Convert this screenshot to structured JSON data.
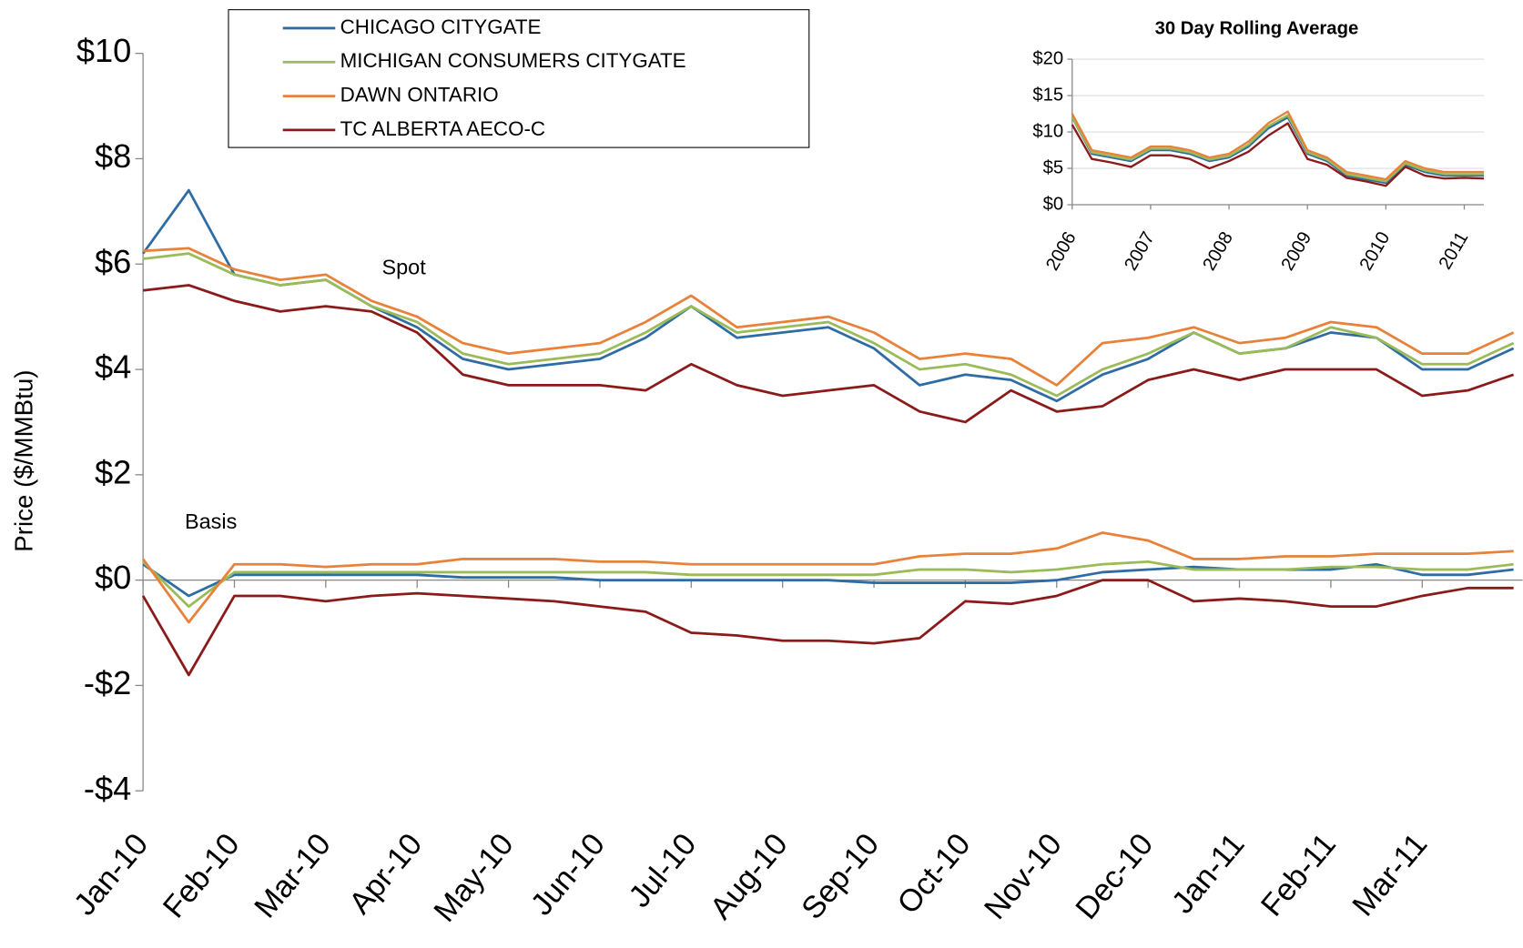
{
  "chart_data": [
    {
      "type": "line",
      "y_label": "Price ($/MMBtu)",
      "annotations": [
        "Spot",
        "Basis"
      ],
      "x": [
        0,
        0.5,
        1,
        1.5,
        2,
        2.5,
        3,
        3.5,
        4,
        4.5,
        5,
        5.5,
        6,
        6.5,
        7,
        7.5,
        8,
        8.5,
        9,
        9.5,
        10,
        10.5,
        11,
        11.5,
        12,
        12.5,
        13,
        13.5,
        14,
        14.5,
        15
      ],
      "xlim": [
        0,
        15.1
      ],
      "xticks": [
        {
          "value": 0,
          "label": "Jan-10"
        },
        {
          "value": 1,
          "label": "Feb-10"
        },
        {
          "value": 2,
          "label": "Mar-10"
        },
        {
          "value": 3,
          "label": "Apr-10"
        },
        {
          "value": 4,
          "label": "May-10"
        },
        {
          "value": 5,
          "label": "Jun-10"
        },
        {
          "value": 6,
          "label": "Jul-10"
        },
        {
          "value": 7,
          "label": "Aug-10"
        },
        {
          "value": 8,
          "label": "Sep-10"
        },
        {
          "value": 9,
          "label": "Oct-10"
        },
        {
          "value": 10,
          "label": "Nov-10"
        },
        {
          "value": 11,
          "label": "Dec-10"
        },
        {
          "value": 12,
          "label": "Jan-11"
        },
        {
          "value": 13,
          "label": "Feb-11"
        },
        {
          "value": 14,
          "label": "Mar-11"
        }
      ],
      "ylim": [
        -4,
        10
      ],
      "yticks": [
        {
          "value": -4,
          "label": "-$4"
        },
        {
          "value": -2,
          "label": "-$2"
        },
        {
          "value": 0,
          "label": "$0"
        },
        {
          "value": 2,
          "label": "$2"
        },
        {
          "value": 4,
          "label": "$4"
        },
        {
          "value": 6,
          "label": "$6"
        },
        {
          "value": 8,
          "label": "$8"
        },
        {
          "value": 10,
          "label": "$10"
        }
      ],
      "grid": false,
      "legend": "top-left",
      "series": [
        {
          "name": "CHICAGO CITYGATE",
          "color": "#2e6ca4",
          "values": [
            6.2,
            7.4,
            5.8,
            5.6,
            5.7,
            5.2,
            4.8,
            4.2,
            4.0,
            4.1,
            4.2,
            4.6,
            5.2,
            4.6,
            4.7,
            4.8,
            4.4,
            3.7,
            3.9,
            3.8,
            3.4,
            3.9,
            4.2,
            4.7,
            4.3,
            4.4,
            4.7,
            4.6,
            4.0,
            4.0,
            4.4
          ],
          "basis": [
            0.3,
            -0.3,
            0.1,
            0.1,
            0.1,
            0.1,
            0.1,
            0.05,
            0.05,
            0.05,
            0.0,
            0.0,
            0.0,
            0.0,
            0.0,
            0.0,
            -0.05,
            -0.05,
            -0.05,
            -0.05,
            0.0,
            0.15,
            0.2,
            0.25,
            0.2,
            0.2,
            0.2,
            0.3,
            0.1,
            0.1,
            0.2
          ]
        },
        {
          "name": "MICHIGAN CONSUMERS CITYGATE",
          "color": "#9bbb59",
          "values": [
            6.1,
            6.2,
            5.8,
            5.6,
            5.7,
            5.2,
            4.9,
            4.3,
            4.1,
            4.2,
            4.3,
            4.7,
            5.2,
            4.7,
            4.8,
            4.9,
            4.5,
            4.0,
            4.1,
            3.9,
            3.5,
            4.0,
            4.3,
            4.7,
            4.3,
            4.4,
            4.8,
            4.6,
            4.1,
            4.1,
            4.5
          ],
          "basis": [
            0.35,
            -0.5,
            0.15,
            0.15,
            0.15,
            0.15,
            0.15,
            0.15,
            0.15,
            0.15,
            0.15,
            0.15,
            0.1,
            0.1,
            0.1,
            0.1,
            0.1,
            0.2,
            0.2,
            0.15,
            0.2,
            0.3,
            0.35,
            0.2,
            0.2,
            0.2,
            0.25,
            0.25,
            0.2,
            0.2,
            0.3
          ]
        },
        {
          "name": "DAWN ONTARIO",
          "color": "#e8823a",
          "values": [
            6.25,
            6.3,
            5.9,
            5.7,
            5.8,
            5.3,
            5.0,
            4.5,
            4.3,
            4.4,
            4.5,
            4.9,
            5.4,
            4.8,
            4.9,
            5.0,
            4.7,
            4.2,
            4.3,
            4.2,
            3.7,
            4.5,
            4.6,
            4.8,
            4.5,
            4.6,
            4.9,
            4.8,
            4.3,
            4.3,
            4.7
          ],
          "basis": [
            0.4,
            -0.8,
            0.3,
            0.3,
            0.25,
            0.3,
            0.3,
            0.4,
            0.4,
            0.4,
            0.35,
            0.35,
            0.3,
            0.3,
            0.3,
            0.3,
            0.3,
            0.45,
            0.5,
            0.5,
            0.6,
            0.9,
            0.75,
            0.4,
            0.4,
            0.45,
            0.45,
            0.5,
            0.5,
            0.5,
            0.55
          ]
        },
        {
          "name": "TC ALBERTA AECO-C",
          "color": "#8b1a1a",
          "values": [
            5.5,
            5.6,
            5.3,
            5.1,
            5.2,
            5.1,
            4.7,
            3.9,
            3.7,
            3.7,
            3.7,
            3.6,
            4.1,
            3.7,
            3.5,
            3.6,
            3.7,
            3.2,
            3.0,
            3.6,
            3.2,
            3.3,
            3.8,
            4.0,
            3.8,
            4.0,
            4.0,
            4.0,
            3.5,
            3.6,
            3.9
          ],
          "basis": [
            -0.3,
            -1.8,
            -0.3,
            -0.3,
            -0.4,
            -0.3,
            -0.25,
            -0.3,
            -0.35,
            -0.4,
            -0.5,
            -0.6,
            -1.0,
            -1.05,
            -1.15,
            -1.15,
            -1.2,
            -1.1,
            -0.4,
            -0.45,
            -0.3,
            0.0,
            0.0,
            -0.4,
            -0.35,
            -0.4,
            -0.5,
            -0.5,
            -0.3,
            -0.15,
            -0.15
          ]
        }
      ]
    },
    {
      "type": "line",
      "title": "30 Day Rolling Average",
      "x": [
        2006,
        2006.25,
        2006.5,
        2006.75,
        2007,
        2007.25,
        2007.5,
        2007.75,
        2008,
        2008.25,
        2008.5,
        2008.75,
        2009,
        2009.25,
        2009.5,
        2009.75,
        2010,
        2010.25,
        2010.5,
        2010.75,
        2011,
        2011.25
      ],
      "xlim": [
        2006,
        2011.25
      ],
      "xticks": [
        2006,
        2007,
        2008,
        2009,
        2010,
        2011
      ],
      "ylim": [
        0,
        20
      ],
      "yticks": [
        {
          "value": 0,
          "label": "$0"
        },
        {
          "value": 5,
          "label": "$5"
        },
        {
          "value": 10,
          "label": "$10"
        },
        {
          "value": 15,
          "label": "$15"
        },
        {
          "value": 20,
          "label": "$20"
        }
      ],
      "grid": true,
      "series": [
        {
          "color": "#2e6ca4",
          "values": [
            12,
            7,
            6.5,
            6,
            7.5,
            7.5,
            7,
            6,
            6.5,
            8,
            10.5,
            12,
            7,
            6,
            4,
            3.5,
            3,
            5.5,
            4.5,
            4,
            4,
            4
          ]
        },
        {
          "color": "#9bbb59",
          "values": [
            12,
            7.2,
            6.7,
            6.2,
            7.7,
            7.7,
            7.2,
            6.2,
            6.7,
            8.3,
            10.8,
            12.3,
            7.2,
            6.2,
            4.2,
            3.7,
            3.2,
            5.7,
            4.7,
            4.2,
            4.2,
            4.2
          ]
        },
        {
          "color": "#e8823a",
          "values": [
            12.5,
            7.5,
            7,
            6.5,
            8,
            8,
            7.5,
            6.5,
            7,
            8.7,
            11.2,
            12.8,
            7.5,
            6.5,
            4.5,
            4,
            3.5,
            6,
            5,
            4.5,
            4.5,
            4.5
          ]
        },
        {
          "color": "#8b1a1a",
          "values": [
            11,
            6.3,
            5.8,
            5.2,
            6.8,
            6.8,
            6.3,
            5,
            6,
            7.3,
            9.5,
            11.2,
            6.3,
            5.5,
            3.7,
            3.2,
            2.6,
            5.2,
            4,
            3.6,
            3.7,
            3.6
          ]
        }
      ]
    }
  ]
}
